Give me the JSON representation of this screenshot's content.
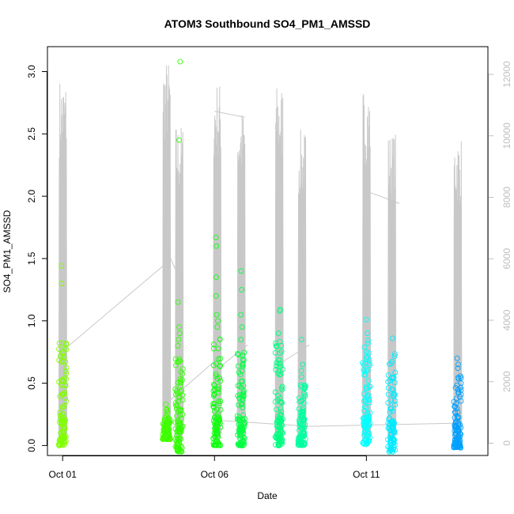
{
  "chart_data": {
    "type": "scatter",
    "title": "ATOM3 Southbound SO4_PM1_AMSSD",
    "xlabel": "Date",
    "ylabel": "SO4_PM1_AMSSD",
    "xlim": [
      "2016-09-30T12:00",
      "2016-10-15T00:00"
    ],
    "ylim": [
      -0.08,
      3.2
    ],
    "x_ticks": [
      "Oct 01",
      "Oct 06",
      "Oct 11"
    ],
    "x_tick_dates": [
      "2016-10-01",
      "2016-10-06",
      "2016-10-11"
    ],
    "y_ticks": [
      0.0,
      0.5,
      1.0,
      1.5,
      2.0,
      2.5,
      3.0
    ],
    "y_tick_labels": [
      "0.0",
      "0.5",
      "1.0",
      "1.5",
      "2.0",
      "2.5",
      "3.0"
    ],
    "secondary_axis": {
      "description": "altitude trace (gray line)",
      "ylim": [
        -400,
        12900
      ],
      "ticks": [
        0,
        2000,
        4000,
        6000,
        8000,
        10000,
        12000
      ],
      "tick_labels": [
        "0",
        "2000",
        "4000",
        "6000",
        "8000",
        "10000",
        "12000"
      ],
      "color": "#bebebe"
    },
    "grid": false,
    "legend": "none",
    "point_color_scale": "rainbow hue by time (yellow-green to blue)",
    "flights": [
      {
        "x": "2016-10-01T00:00",
        "ymin": 0.0,
        "ymax": 0.83,
        "outliers": [
          0.72,
          0.74,
          0.75,
          1.3,
          1.44
        ],
        "color": "#80ff00",
        "alt_max": 11900
      },
      {
        "x": "2016-10-04T10:00",
        "ymin": 0.05,
        "ymax": 0.22,
        "outliers": [
          0.33
        ],
        "color": "#40ff00",
        "alt_max": 12500
      },
      {
        "x": "2016-10-04T20:00",
        "ymin": -0.05,
        "ymax": 0.7,
        "outliers": [
          0.8,
          0.85,
          0.9,
          0.95,
          1.15,
          2.45,
          3.08
        ],
        "color": "#30ff00",
        "alt_max": 10400
      },
      {
        "x": "2016-10-06T02:00",
        "ymin": 0.0,
        "ymax": 0.9,
        "outliers": [
          0.95,
          1.0,
          1.05,
          1.2,
          1.35,
          1.6,
          1.67
        ],
        "color": "#10ff10",
        "alt_max": 11800
      },
      {
        "x": "2016-10-06T21:00",
        "ymin": 0.0,
        "ymax": 0.8,
        "outliers": [
          0.85,
          0.95,
          1.05,
          1.25,
          1.4
        ],
        "color": "#00ff40",
        "alt_max": 10900
      },
      {
        "x": "2016-10-08T03:00",
        "ymin": 0.0,
        "ymax": 0.85,
        "outliers": [
          0.9,
          1.08,
          1.09
        ],
        "color": "#00ff80",
        "alt_max": 11700
      },
      {
        "x": "2016-10-08T21:00",
        "ymin": 0.0,
        "ymax": 0.5,
        "outliers": [
          0.55,
          0.6,
          0.65,
          0.85
        ],
        "color": "#00ffa0",
        "alt_max": 10200
      },
      {
        "x": "2016-10-11T00:00",
        "ymin": 0.0,
        "ymax": 0.85,
        "outliers": [
          0.9,
          1.01
        ],
        "color": "#00ffff",
        "alt_max": 11600
      },
      {
        "x": "2016-10-11T20:00",
        "ymin": -0.05,
        "ymax": 0.75,
        "outliers": [
          0.86
        ],
        "color": "#00eaff",
        "alt_max": 10100
      },
      {
        "x": "2016-10-14T00:00",
        "ymin": -0.02,
        "ymax": 0.6,
        "outliers": [
          0.62,
          0.65,
          0.7
        ],
        "color": "#00a0ff",
        "alt_max": 10000
      }
    ],
    "transit_lines": [
      [
        [
          "2016-10-01T00:00",
          3000
        ],
        [
          "2016-10-04T14:00",
          6000
        ]
      ],
      [
        [
          "2016-10-04T10:00",
          6300
        ],
        [
          "2016-10-04T20:00",
          5400
        ]
      ],
      [
        [
          "2016-10-04T10:00",
          1300
        ],
        [
          "2016-10-06T01:00",
          2700
        ]
      ],
      [
        [
          "2016-10-06T00:00",
          10800
        ],
        [
          "2016-10-07T00:00",
          10600
        ]
      ],
      [
        [
          "2016-10-06T05:00",
          2500
        ],
        [
          "2016-10-07T02:00",
          3200
        ]
      ],
      [
        [
          "2016-10-06T00:00",
          750
        ],
        [
          "2016-10-09T03:00",
          550
        ]
      ],
      [
        [
          "2016-10-09T03:00",
          550
        ],
        [
          "2016-10-14T00:00",
          650
        ]
      ],
      [
        [
          "2016-10-11T00:00",
          8200
        ],
        [
          "2016-10-12T02:00",
          7800
        ]
      ],
      [
        [
          "2016-10-08T04:00",
          2600
        ],
        [
          "2016-10-09T03:00",
          3200
        ]
      ]
    ]
  }
}
